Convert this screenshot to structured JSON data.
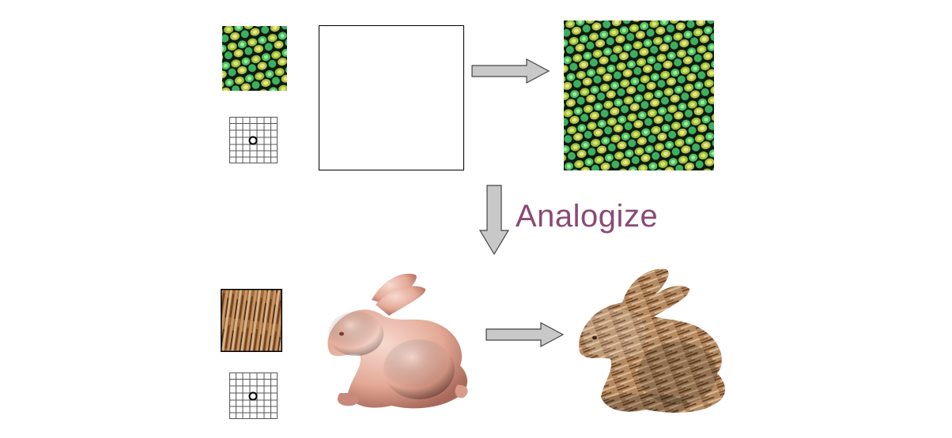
{
  "diagram": {
    "label": "Analogize",
    "label_color": "#8a4a75",
    "arrow_fill": "#c8c8c8",
    "arrow_stroke": "#444444",
    "top_row": {
      "source_texture": "lizard-scale-texture-swatch",
      "neighborhood": "pixel-neighborhood-grid-icon",
      "input": "blank-canvas",
      "output": "synthesized-lizard-scale-texture"
    },
    "bottom_row": {
      "source_texture": "wood-bark-texture-swatch",
      "neighborhood": "surface-neighborhood-grid-icon",
      "input": "plain-bunny-model",
      "output": "textured-wood-bunny"
    }
  }
}
